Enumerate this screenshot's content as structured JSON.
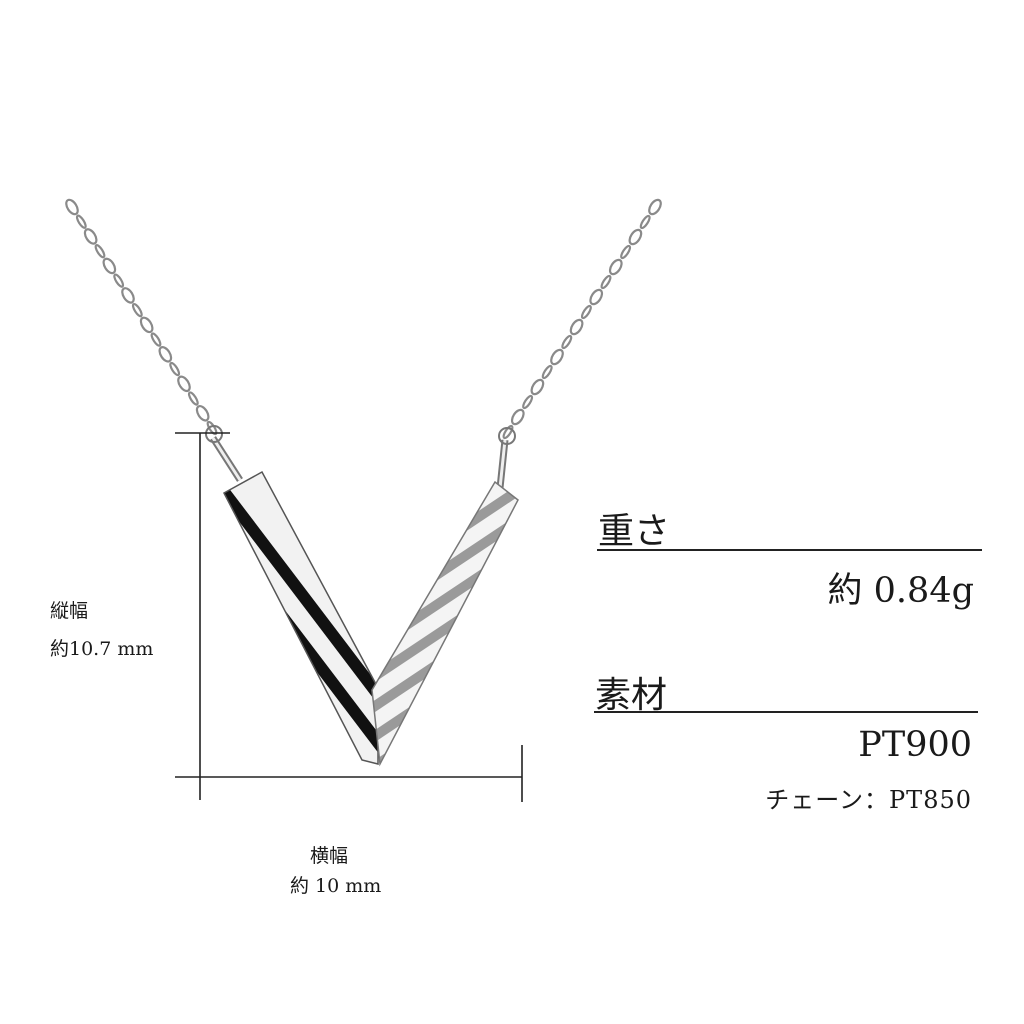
{
  "dimensions": {
    "height_label": "縦幅",
    "height_value": "約10.7 mm",
    "width_label": "横幅",
    "width_value": "約 10 mm"
  },
  "specs": {
    "weight_heading": "重さ",
    "weight_value": "約 0.84g",
    "material_heading": "素材",
    "material_value": "PT900",
    "chain_value": "チェーン：PT850"
  },
  "colors": {
    "line": "#222222",
    "metal_dark": "#111111",
    "metal_light": "#f2f2f2",
    "metal_mid": "#9a9a9a"
  }
}
